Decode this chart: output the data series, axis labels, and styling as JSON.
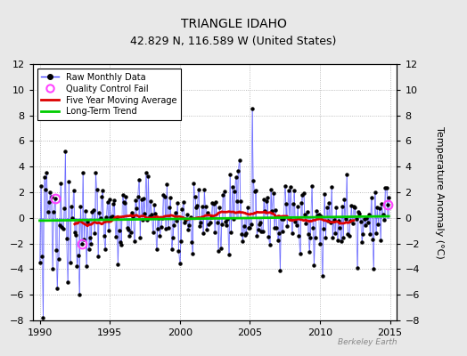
{
  "title": "TRIANGLE IDAHO",
  "subtitle": "42.829 N, 116.589 W (United States)",
  "ylabel": "Temperature Anomaly (°C)",
  "watermark": "Berkeley Earth",
  "xlim": [
    1989.5,
    2015.5
  ],
  "ylim": [
    -8,
    12
  ],
  "yticks": [
    -8,
    -6,
    -4,
    -2,
    0,
    2,
    4,
    6,
    8,
    10,
    12
  ],
  "xticks": [
    1990,
    1995,
    2000,
    2005,
    2010,
    2015
  ],
  "background_color": "#e8e8e8",
  "plot_background": "#ffffff",
  "raw_color": "#4444ff",
  "ma_color": "#dd0000",
  "trend_color": "#00cc00",
  "qc_color": "#ff44ff",
  "seed": 12345,
  "title_fontsize": 10,
  "subtitle_fontsize": 9,
  "tick_fontsize": 8,
  "ylabel_fontsize": 8
}
